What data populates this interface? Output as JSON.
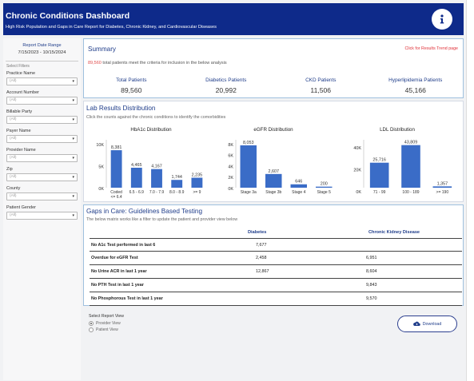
{
  "header": {
    "title": "Chronic Conditions Dashboard",
    "subtitle": "High Risk Population and Gaps in Care Report for Diabetes, Chronic Kidney, and Cardiovascular Diseases",
    "info_icon": "info-icon"
  },
  "sidebar": {
    "report_date_label": "Report Date Range",
    "report_date_value": "7/15/2023 - 10/15/2024",
    "filters_title": "Select Filters",
    "filters": [
      {
        "label": "Practice Name",
        "value": "(All)"
      },
      {
        "label": "Account Number",
        "value": "(All)"
      },
      {
        "label": "Billable Party",
        "value": "(All)"
      },
      {
        "label": "Payer Name",
        "value": "(All)"
      },
      {
        "label": "Provider Name",
        "value": "(All)"
      },
      {
        "label": "Zip",
        "value": "(All)"
      },
      {
        "label": "County",
        "value": "(All)"
      },
      {
        "label": "Patient Gender",
        "value": "(All)"
      }
    ]
  },
  "summary": {
    "title": "Summary",
    "trend_link": "Click for Results Trend page",
    "note_count": "89,560",
    "note_text": " total patients meet the criteria for inclusion in the below analysis",
    "kpis": [
      {
        "label": "Total Patients",
        "value": "89,560"
      },
      {
        "label": "Diabetics Patients",
        "value": "20,992"
      },
      {
        "label": "CKD Patients",
        "value": "11,506"
      },
      {
        "label": "Hyperlipidemia Patients",
        "value": "45,166"
      }
    ]
  },
  "lab": {
    "title": "Lab Results Distribution",
    "subtitle": "Click the counts against the chronic conditions to identify the comorbidities"
  },
  "chart_data": [
    {
      "type": "bar",
      "title": "HbA1c Distribution",
      "categories": [
        "Coded\n<= 6.4",
        "6.5 - 6.9",
        "7.0 - 7.9",
        "8.0 - 8.9",
        ">= 9"
      ],
      "values": [
        8381,
        4465,
        4167,
        1744,
        2235
      ],
      "value_labels": [
        "8,381",
        "4,465",
        "4,167",
        "1,744",
        "2,235"
      ],
      "yticks": [
        "10K",
        "5K",
        "0K"
      ],
      "ylim": [
        0,
        10000
      ],
      "color": "#3a6cc7"
    },
    {
      "type": "bar",
      "title": "eGFR Distribution",
      "categories": [
        "Stage 3a",
        "Stage 3b",
        "Stage 4",
        "Stage 5"
      ],
      "values": [
        8053,
        2607,
        646,
        200
      ],
      "value_labels": [
        "8,053",
        "2,607",
        "646",
        "200"
      ],
      "yticks": [
        "8K",
        "6K",
        "4K",
        "2K",
        "0K"
      ],
      "ylim": [
        0,
        8500
      ],
      "color": "#3a6cc7"
    },
    {
      "type": "bar",
      "title": "LDL Distribution",
      "categories": [
        "71 - 99",
        "100 - 189",
        ">= 190"
      ],
      "values": [
        25716,
        43809,
        1357
      ],
      "value_labels": [
        "25,716",
        "43,809",
        "1,357"
      ],
      "yticks": [
        "40K",
        "20K",
        "0K"
      ],
      "ylim": [
        0,
        46000
      ],
      "color": "#3a6cc7"
    }
  ],
  "gaps": {
    "title": "Gaps in Care: Guidelines Based Testing",
    "subtitle": "The below matrix works like a filter to update the patient and provider view below",
    "col1": "Diabetes",
    "col2": "Chronic Kidney Disease",
    "rows": [
      {
        "label": "No A1c Test performed in last 6",
        "v1": "7,677",
        "v2": ""
      },
      {
        "label": "Overdue for eGFR Test",
        "v1": "2,458",
        "v2": "6,951"
      },
      {
        "label": "No Urine ACR in last 1 year",
        "v1": "12,867",
        "v2": "8,604"
      },
      {
        "label": "No PTH Test in last 1 year",
        "v1": "",
        "v2": "9,843"
      },
      {
        "label": "No Phosphorous Test in last 1 year",
        "v1": "",
        "v2": "9,570"
      }
    ]
  },
  "report_view": {
    "title": "Select Report View",
    "options": [
      "Provider View",
      "Patient View"
    ],
    "selected": "Provider View"
  },
  "download": {
    "label": "Download",
    "icon": "cloud-download-icon"
  }
}
